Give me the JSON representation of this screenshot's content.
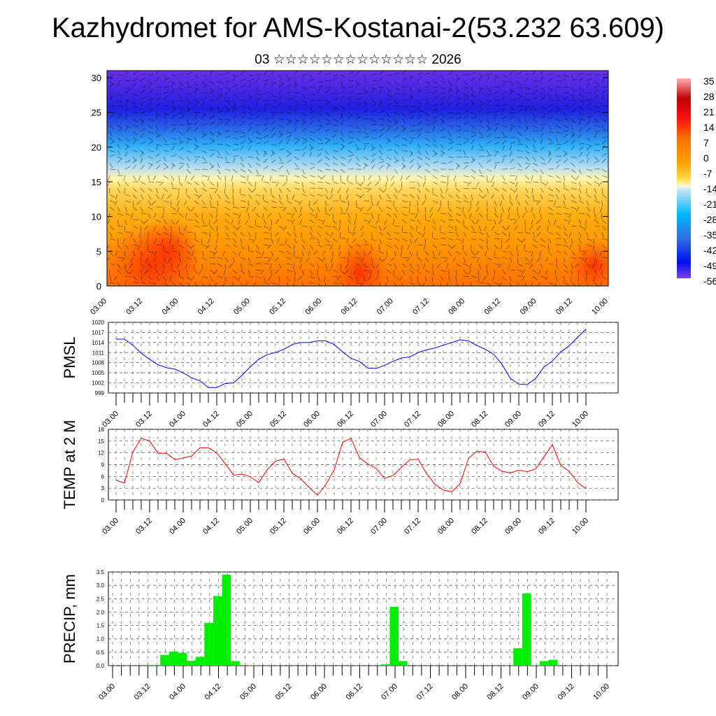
{
  "title": "Kazhydromet for AMS-Kostanai-2(53.232 63.609)",
  "subtitle": "03 ☆☆☆☆☆☆☆☆☆☆☆☆☆ 2026",
  "time_labels": [
    "03.00",
    "03.12",
    "04.00",
    "04.12",
    "05.00",
    "05.12",
    "06.00",
    "06.12",
    "07.00",
    "07.12",
    "08.00",
    "08.12",
    "09.00",
    "09.12",
    "10.00"
  ],
  "chart_data": [
    {
      "type": "heatmap",
      "name": "temperature-wind cross section",
      "ylim": [
        0,
        31
      ],
      "yticks": [
        "0",
        "5",
        "10",
        "15",
        "20",
        "25",
        "30"
      ],
      "colorbar_labels": [
        "35",
        "28",
        "21",
        "14",
        "7",
        "0",
        "-7",
        "-14",
        "-21",
        "-28",
        "-35",
        "-42",
        "-49",
        "-56"
      ]
    },
    {
      "type": "line",
      "ylabel": "PMSL",
      "ylim": [
        999,
        1020
      ],
      "yticks": [
        "999",
        "1002",
        "1005",
        "1008",
        "1011",
        "1014",
        "1017",
        "1020"
      ],
      "color": "#0000ff",
      "step_hours": 3,
      "values": [
        1015,
        1015,
        1013.2,
        1010.8,
        1009,
        1007.4,
        1006.5,
        1006.1,
        1005,
        1003.5,
        1002.6,
        1000.6,
        1000.6,
        1001.8,
        1002,
        1004.2,
        1006.8,
        1009,
        1010.4,
        1011,
        1012,
        1013.4,
        1014,
        1014,
        1014.5,
        1014.5,
        1013.4,
        1011.2,
        1009.3,
        1008.4,
        1006.4,
        1006.3,
        1007.2,
        1008.4,
        1009.4,
        1009.7,
        1011,
        1011.8,
        1012.4,
        1013.2,
        1014,
        1014.8,
        1014.5,
        1013.1,
        1012,
        1010.5,
        1007.5,
        1003.3,
        1001.6,
        1001.5,
        1003.3,
        1006.7,
        1008.5,
        1011.2,
        1013,
        1015.5,
        1018
      ]
    },
    {
      "type": "line",
      "ylabel": "TEMP at 2 M",
      "ylim": [
        0,
        18
      ],
      "yticks": [
        "0",
        "3",
        "6",
        "9",
        "12",
        "15",
        "18"
      ],
      "color": "#ff0000",
      "step_hours": 3,
      "values": [
        5,
        4.3,
        12.2,
        15.7,
        15,
        11.9,
        11.9,
        10.3,
        10.7,
        11.2,
        13.3,
        13.3,
        12,
        9.3,
        6.3,
        6.6,
        5.9,
        4.4,
        7.7,
        9.9,
        10.4,
        6.8,
        5.4,
        3.2,
        1.2,
        3.9,
        7.7,
        14.7,
        15.7,
        10.8,
        9.2,
        8,
        5.5,
        6.2,
        8.3,
        10.2,
        10.4,
        6.7,
        4,
        2.5,
        2.1,
        4.1,
        10.6,
        12.4,
        12.2,
        8.6,
        7.3,
        6.9,
        7.6,
        7.2,
        7.9,
        11,
        14.1,
        8.8,
        7.3,
        4.4,
        2.9
      ]
    },
    {
      "type": "bar",
      "ylabel": "PRECIP, mm",
      "ylim": [
        0,
        3.5
      ],
      "yticks": [
        "0.0",
        "0.5",
        "1.0",
        "1.5",
        "2.0",
        "2.5",
        "3.0",
        "3.5"
      ],
      "color": "#00ee00",
      "step_hours": 3,
      "values": [
        0,
        0,
        0,
        0.03,
        0.03,
        0.4,
        0.53,
        0.48,
        0.18,
        0.33,
        1.6,
        2.6,
        3.4,
        0.17,
        0,
        0.02,
        0,
        0,
        0,
        0,
        0,
        0,
        0,
        0,
        0,
        0,
        0,
        0,
        0,
        0,
        0.05,
        2.2,
        0.17,
        0,
        0,
        0,
        0,
        0,
        0,
        0,
        0,
        0,
        0,
        0,
        0,
        0.65,
        2.7,
        0.02,
        0.17,
        0.22,
        0,
        0,
        0,
        0,
        0,
        0
      ]
    }
  ]
}
